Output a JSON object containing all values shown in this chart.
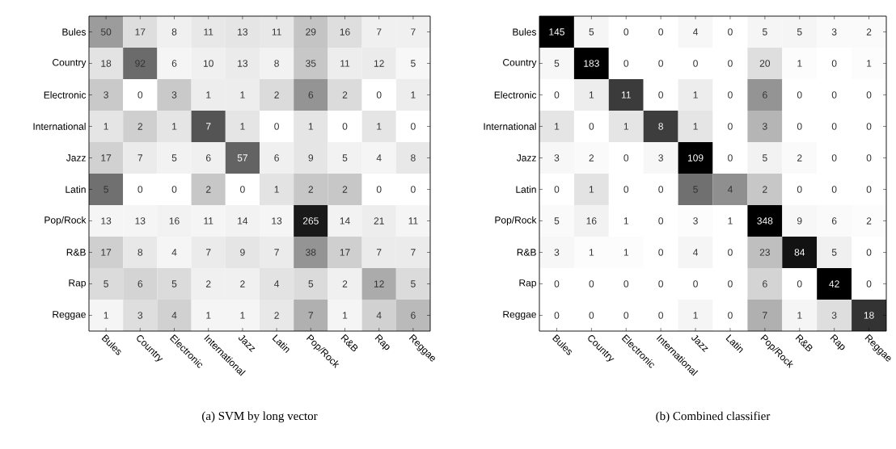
{
  "chart_data": [
    {
      "type": "heatmap",
      "title": "(a) SVM by long vector",
      "data_labels": true,
      "categories": [
        "Bules",
        "Country",
        "Electronic",
        "International",
        "Jazz",
        "Latin",
        "Pop/Rock",
        "R&B",
        "Rap",
        "Reggae"
      ],
      "y_categories": [
        "Bules",
        "Country",
        "Electronic",
        "International",
        "Jazz",
        "Latin",
        "Pop/Rock",
        "R&B",
        "Rap",
        "Reggae"
      ],
      "cells": [
        [
          50,
          17,
          8,
          11,
          13,
          11,
          29,
          16,
          7,
          7
        ],
        [
          18,
          92,
          6,
          10,
          13,
          8,
          35,
          11,
          12,
          5
        ],
        [
          3,
          0,
          3,
          1,
          1,
          2,
          6,
          2,
          0,
          1
        ],
        [
          1,
          2,
          1,
          7,
          1,
          0,
          1,
          0,
          1,
          0
        ],
        [
          17,
          7,
          5,
          6,
          57,
          6,
          9,
          5,
          4,
          8
        ],
        [
          5,
          0,
          0,
          2,
          0,
          1,
          2,
          2,
          0,
          0
        ],
        [
          13,
          13,
          16,
          11,
          14,
          13,
          265,
          14,
          21,
          11
        ],
        [
          17,
          8,
          4,
          7,
          9,
          7,
          38,
          17,
          7,
          7
        ],
        [
          5,
          6,
          5,
          2,
          2,
          4,
          5,
          2,
          12,
          5
        ],
        [
          1,
          3,
          4,
          1,
          1,
          2,
          7,
          1,
          4,
          6
        ]
      ]
    },
    {
      "type": "heatmap",
      "title": "(b) Combined classifier",
      "data_labels": true,
      "categories": [
        "Bules",
        "Country",
        "Electronic",
        "International",
        "Jazz",
        "Latin",
        "Pop/Rock",
        "R&B",
        "Rap",
        "Reggae"
      ],
      "y_categories": [
        "Bules",
        "Country",
        "Electronic",
        "International",
        "Jazz",
        "Latin",
        "Pop/Rock",
        "R&B",
        "Rap",
        "Reggae"
      ],
      "cells": [
        [
          145,
          5,
          0,
          0,
          4,
          0,
          5,
          5,
          3,
          2
        ],
        [
          5,
          183,
          0,
          0,
          0,
          0,
          20,
          1,
          0,
          1
        ],
        [
          0,
          1,
          11,
          0,
          1,
          0,
          6,
          0,
          0,
          0
        ],
        [
          1,
          0,
          1,
          8,
          1,
          0,
          3,
          0,
          0,
          0
        ],
        [
          3,
          2,
          0,
          3,
          109,
          0,
          5,
          2,
          0,
          0
        ],
        [
          0,
          1,
          0,
          0,
          5,
          4,
          2,
          0,
          0,
          0
        ],
        [
          5,
          16,
          1,
          0,
          3,
          1,
          348,
          9,
          6,
          2
        ],
        [
          3,
          1,
          1,
          0,
          4,
          0,
          23,
          84,
          5,
          0
        ],
        [
          0,
          0,
          0,
          0,
          0,
          0,
          6,
          0,
          42,
          0
        ],
        [
          0,
          0,
          0,
          0,
          1,
          0,
          7,
          1,
          3,
          18
        ]
      ]
    }
  ]
}
